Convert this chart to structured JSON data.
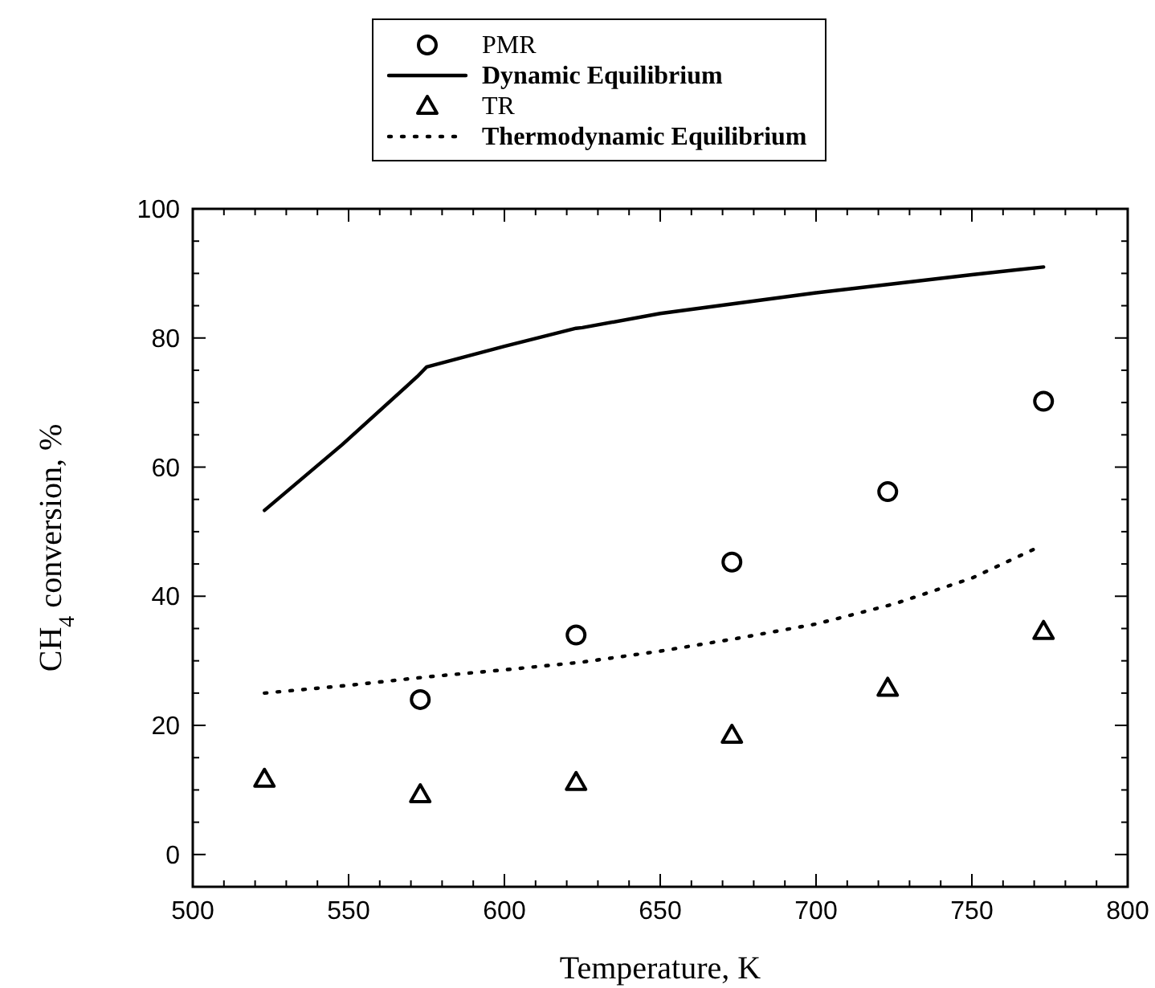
{
  "chart_data": {
    "type": "scatter",
    "xlabel": "Temperature, K",
    "ylabel": "CH$_{4}$ conversion, %",
    "xlim": [
      500,
      800
    ],
    "ylim": [
      -5,
      100
    ],
    "xticks": [
      500,
      {
        "value": 510,
        "label": null
      },
      {
        "value": 520,
        "label": null
      },
      {
        "value": 530,
        "label": null
      },
      {
        "value": 540,
        "label": null
      },
      550,
      {
        "value": 560,
        "label": null
      },
      {
        "value": 570,
        "label": null
      },
      {
        "value": 580,
        "label": null
      },
      {
        "value": 590,
        "label": null
      },
      600,
      {
        "value": 610,
        "label": null
      },
      {
        "value": 620,
        "label": null
      },
      {
        "value": 630,
        "label": null
      },
      {
        "value": 640,
        "label": null
      },
      650,
      {
        "value": 660,
        "label": null
      },
      {
        "value": 670,
        "label": null
      },
      {
        "value": 680,
        "label": null
      },
      {
        "value": 690,
        "label": null
      },
      700,
      {
        "value": 710,
        "label": null
      },
      {
        "value": 720,
        "label": null
      },
      {
        "value": 730,
        "label": null
      },
      {
        "value": 740,
        "label": null
      },
      750,
      {
        "value": 760,
        "label": null
      },
      {
        "value": 770,
        "label": null
      },
      {
        "value": 780,
        "label": null
      },
      {
        "value": 790,
        "label": null
      },
      800
    ],
    "yticks": [
      {
        "value": -5,
        "label": null
      },
      0,
      {
        "value": 5,
        "label": null
      },
      {
        "value": 10,
        "label": null
      },
      {
        "value": 15,
        "label": null
      },
      20,
      {
        "value": 25,
        "label": null
      },
      {
        "value": 30,
        "label": null
      },
      {
        "value": 35,
        "label": null
      },
      40,
      {
        "value": 45,
        "label": null
      },
      {
        "value": 50,
        "label": null
      },
      {
        "value": 55,
        "label": null
      },
      60,
      {
        "value": 65,
        "label": null
      },
      {
        "value": 70,
        "label": null
      },
      {
        "value": 75,
        "label": null
      },
      80,
      {
        "value": 85,
        "label": null
      },
      {
        "value": 90,
        "label": null
      },
      {
        "value": 95,
        "label": null
      },
      100
    ],
    "grid": false,
    "legend": "top",
    "series": [
      {
        "name": "PMR",
        "marker": "circle",
        "color": "#000000",
        "x": [
          573,
          623,
          673,
          723,
          773
        ],
        "values": [
          24,
          34,
          45.3,
          56.2,
          70.2
        ]
      },
      {
        "name": "Dynamic Equilibrium",
        "type": "line",
        "marker": "none",
        "line_style": "solid",
        "color": "#000000",
        "x": [
          523,
          548,
          572,
          575,
          600,
          623,
          625,
          650,
          700,
          750,
          773
        ],
        "values": [
          53.3,
          63.5,
          74,
          75.5,
          78.7,
          81.5,
          81.6,
          83.8,
          87,
          89.8,
          91
        ]
      },
      {
        "name": "TR",
        "marker": "triangle",
        "color": "#000000",
        "x": [
          523,
          573,
          623,
          673,
          723,
          773
        ],
        "values": [
          11.7,
          9.3,
          11.2,
          18.5,
          25.8,
          34.6
        ]
      },
      {
        "name": "Thermodynamic Equilibrium",
        "type": "line",
        "marker": "none",
        "line_style": "dotted",
        "color": "#000000",
        "x": [
          523,
          550,
          575,
          600,
          625,
          650,
          675,
          700,
          725,
          750,
          770
        ],
        "values": [
          25,
          26.2,
          27.5,
          28.6,
          29.8,
          31.5,
          33.5,
          35.7,
          38.8,
          42.8,
          47.3
        ]
      }
    ]
  }
}
